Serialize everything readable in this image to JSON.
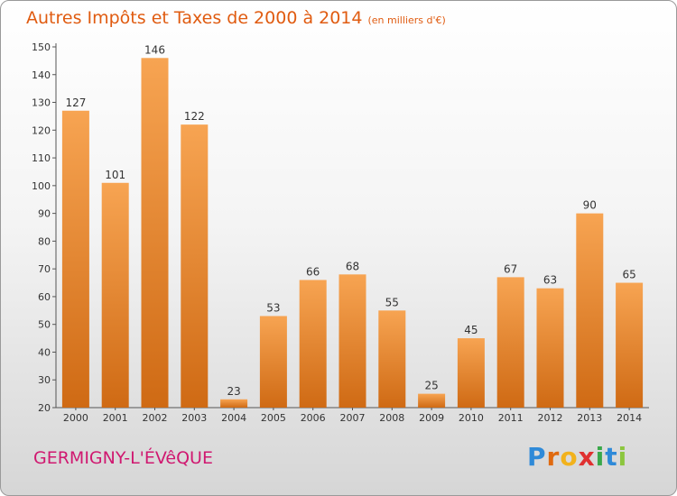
{
  "header": {
    "title": "Autres Impôts et Taxes de 2000 à 2014",
    "unit": "(en milliers d'€)"
  },
  "footer": {
    "location": "GERMIGNY-L'ÉVêQUE",
    "brand": "Proxiti"
  },
  "colors": {
    "bar_top": "#f7a452",
    "bar_bottom": "#cf6a14",
    "title": "#e05b10",
    "location": "#d01870"
  },
  "chart_data": {
    "type": "bar",
    "title": "Autres Impôts et Taxes de 2000 à 2014",
    "subtitle": "(en milliers d'€)",
    "categories": [
      "2000",
      "2001",
      "2002",
      "2003",
      "2004",
      "2005",
      "2006",
      "2007",
      "2008",
      "2009",
      "2010",
      "2011",
      "2012",
      "2013",
      "2014"
    ],
    "values": [
      127,
      101,
      146,
      122,
      23,
      53,
      66,
      68,
      55,
      25,
      45,
      67,
      63,
      90,
      65
    ],
    "data_labels": [
      "127",
      "101",
      "146",
      "122",
      "23",
      "53",
      "66",
      "68",
      "55",
      "25",
      "45",
      "67",
      "63",
      "90",
      "65"
    ],
    "ylim": [
      20,
      150
    ],
    "yticks": [
      20,
      30,
      40,
      50,
      60,
      70,
      80,
      90,
      100,
      110,
      120,
      130,
      140,
      150
    ],
    "grid": false,
    "legend": "none"
  }
}
